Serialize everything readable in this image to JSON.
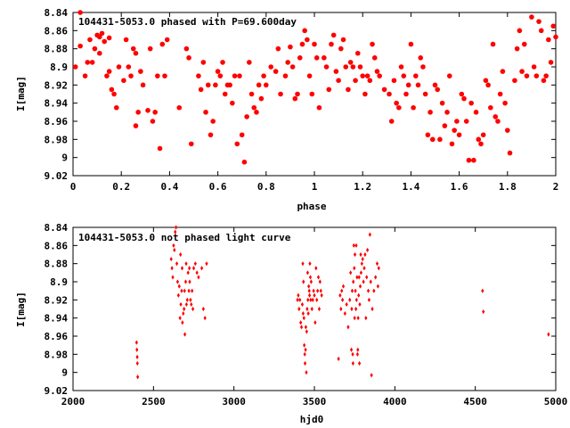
{
  "marker_color": "#ff0000",
  "chart_data": [
    {
      "type": "scatter",
      "title": "104431-5053.0 phased with P=69.600day",
      "xlabel": "phase",
      "ylabel": "I[mag]",
      "xlim": [
        0,
        2
      ],
      "ylim": [
        9.02,
        8.84
      ],
      "y_inverted": true,
      "marker": "filled-circle",
      "xticks": [
        "0",
        "0.2",
        "0.4",
        "0.6",
        "0.8",
        "1",
        "1.2",
        "1.4",
        "1.6",
        "1.8",
        "2"
      ],
      "yticks": [
        "8.84",
        "8.86",
        "8.88",
        "8.9",
        "8.92",
        "8.94",
        "8.96",
        "8.98",
        "9",
        "9.02"
      ],
      "points": [
        [
          0.01,
          8.9
        ],
        [
          0.03,
          8.84
        ],
        [
          0.03,
          8.877
        ],
        [
          0.05,
          8.91
        ],
        [
          0.06,
          8.895
        ],
        [
          0.07,
          8.87
        ],
        [
          0.08,
          8.895
        ],
        [
          0.09,
          8.88
        ],
        [
          0.1,
          8.865
        ],
        [
          0.11,
          8.867
        ],
        [
          0.11,
          8.885
        ],
        [
          0.12,
          8.863
        ],
        [
          0.13,
          8.872
        ],
        [
          0.14,
          8.91
        ],
        [
          0.15,
          8.905
        ],
        [
          0.15,
          8.868
        ],
        [
          0.16,
          8.925
        ],
        [
          0.17,
          8.93
        ],
        [
          0.18,
          8.945
        ],
        [
          0.19,
          8.9
        ],
        [
          0.21,
          8.915
        ],
        [
          0.22,
          8.87
        ],
        [
          0.23,
          8.9
        ],
        [
          0.24,
          8.91
        ],
        [
          0.25,
          8.88
        ],
        [
          0.26,
          8.885
        ],
        [
          0.26,
          8.965
        ],
        [
          0.27,
          8.95
        ],
        [
          0.28,
          8.905
        ],
        [
          0.29,
          8.92
        ],
        [
          0.31,
          8.948
        ],
        [
          0.32,
          8.88
        ],
        [
          0.33,
          8.96
        ],
        [
          0.34,
          8.95
        ],
        [
          0.35,
          8.91
        ],
        [
          0.36,
          8.99
        ],
        [
          0.37,
          8.875
        ],
        [
          0.38,
          8.91
        ],
        [
          0.39,
          8.87
        ],
        [
          0.44,
          8.945
        ],
        [
          0.47,
          8.88
        ],
        [
          0.48,
          8.89
        ],
        [
          0.49,
          8.985
        ],
        [
          0.52,
          8.91
        ],
        [
          0.53,
          8.925
        ],
        [
          0.54,
          8.895
        ],
        [
          0.55,
          8.95
        ],
        [
          0.56,
          8.92
        ],
        [
          0.57,
          8.975
        ],
        [
          0.58,
          8.96
        ],
        [
          0.59,
          8.92
        ],
        [
          0.6,
          8.905
        ],
        [
          0.61,
          8.91
        ],
        [
          0.62,
          8.895
        ],
        [
          0.63,
          8.93
        ],
        [
          0.64,
          8.92
        ],
        [
          0.65,
          8.92
        ],
        [
          0.66,
          8.94
        ],
        [
          0.67,
          8.91
        ],
        [
          0.68,
          8.985
        ],
        [
          0.69,
          8.91
        ],
        [
          0.7,
          8.975
        ],
        [
          0.71,
          9.005
        ],
        [
          0.72,
          8.955
        ],
        [
          0.73,
          8.895
        ],
        [
          0.74,
          8.93
        ],
        [
          0.75,
          8.945
        ],
        [
          0.76,
          8.95
        ],
        [
          0.77,
          8.92
        ],
        [
          0.78,
          8.935
        ],
        [
          0.79,
          8.91
        ],
        [
          0.8,
          8.92
        ],
        [
          0.82,
          8.9
        ],
        [
          0.84,
          8.905
        ],
        [
          0.85,
          8.88
        ],
        [
          0.86,
          8.93
        ],
        [
          0.88,
          8.91
        ],
        [
          0.89,
          8.895
        ],
        [
          0.9,
          8.878
        ],
        [
          0.91,
          8.9
        ],
        [
          0.92,
          8.935
        ],
        [
          0.93,
          8.93
        ],
        [
          0.94,
          8.89
        ],
        [
          0.95,
          8.875
        ],
        [
          0.96,
          8.86
        ],
        [
          0.97,
          8.87
        ],
        [
          0.98,
          8.91
        ],
        [
          0.99,
          8.93
        ],
        [
          1,
          8.875
        ],
        [
          1.01,
          8.89
        ],
        [
          1.02,
          8.945
        ],
        [
          1.04,
          8.89
        ],
        [
          1.05,
          8.9
        ],
        [
          1.06,
          8.925
        ],
        [
          1.07,
          8.875
        ],
        [
          1.08,
          8.865
        ],
        [
          1.09,
          8.905
        ],
        [
          1.1,
          8.915
        ],
        [
          1.11,
          8.88
        ],
        [
          1.12,
          8.87
        ],
        [
          1.13,
          8.9
        ],
        [
          1.14,
          8.925
        ],
        [
          1.15,
          8.895
        ],
        [
          1.16,
          8.9
        ],
        [
          1.17,
          8.915
        ],
        [
          1.18,
          8.885
        ],
        [
          1.19,
          8.9
        ],
        [
          1.2,
          8.91
        ],
        [
          1.21,
          8.93
        ],
        [
          1.22,
          8.91
        ],
        [
          1.23,
          8.915
        ],
        [
          1.24,
          8.875
        ],
        [
          1.25,
          8.89
        ],
        [
          1.26,
          8.905
        ],
        [
          1.27,
          8.91
        ],
        [
          1.29,
          8.925
        ],
        [
          1.31,
          8.93
        ],
        [
          1.32,
          8.96
        ],
        [
          1.33,
          8.915
        ],
        [
          1.34,
          8.94
        ],
        [
          1.35,
          8.945
        ],
        [
          1.36,
          8.9
        ],
        [
          1.37,
          8.91
        ],
        [
          1.38,
          8.93
        ],
        [
          1.39,
          8.92
        ],
        [
          1.4,
          8.875
        ],
        [
          1.41,
          8.945
        ],
        [
          1.42,
          8.91
        ],
        [
          1.43,
          8.92
        ],
        [
          1.44,
          8.89
        ],
        [
          1.45,
          8.9
        ],
        [
          1.46,
          8.93
        ],
        [
          1.47,
          8.975
        ],
        [
          1.48,
          8.95
        ],
        [
          1.49,
          8.98
        ],
        [
          1.5,
          8.92
        ],
        [
          1.51,
          8.925
        ],
        [
          1.52,
          8.98
        ],
        [
          1.53,
          8.94
        ],
        [
          1.54,
          8.965
        ],
        [
          1.55,
          8.95
        ],
        [
          1.56,
          8.91
        ],
        [
          1.57,
          8.985
        ],
        [
          1.58,
          8.97
        ],
        [
          1.59,
          8.96
        ],
        [
          1.6,
          8.975
        ],
        [
          1.61,
          8.93
        ],
        [
          1.62,
          8.935
        ],
        [
          1.63,
          8.96
        ],
        [
          1.64,
          9.003
        ],
        [
          1.65,
          8.94
        ],
        [
          1.66,
          9.003
        ],
        [
          1.67,
          8.95
        ],
        [
          1.68,
          8.98
        ],
        [
          1.69,
          8.985
        ],
        [
          1.7,
          8.975
        ],
        [
          1.71,
          8.915
        ],
        [
          1.72,
          8.92
        ],
        [
          1.73,
          8.945
        ],
        [
          1.74,
          8.875
        ],
        [
          1.75,
          8.955
        ],
        [
          1.76,
          8.96
        ],
        [
          1.77,
          8.93
        ],
        [
          1.78,
          8.905
        ],
        [
          1.79,
          8.94
        ],
        [
          1.8,
          8.97
        ],
        [
          1.81,
          8.995
        ],
        [
          1.83,
          8.915
        ],
        [
          1.84,
          8.88
        ],
        [
          1.85,
          8.86
        ],
        [
          1.86,
          8.905
        ],
        [
          1.87,
          8.875
        ],
        [
          1.88,
          8.91
        ],
        [
          1.9,
          8.845
        ],
        [
          1.91,
          8.9
        ],
        [
          1.92,
          8.91
        ],
        [
          1.93,
          8.85
        ],
        [
          1.94,
          8.86
        ],
        [
          1.95,
          8.915
        ],
        [
          1.96,
          8.91
        ],
        [
          1.97,
          8.87
        ],
        [
          1.98,
          8.895
        ],
        [
          1.99,
          8.855
        ],
        [
          2,
          8.867
        ]
      ]
    },
    {
      "type": "scatter",
      "title": "104431-5053.0 not phased light curve",
      "xlabel": "hjd0",
      "ylabel": "I[mag]",
      "xlim": [
        2000,
        5000
      ],
      "ylim": [
        9.02,
        8.84
      ],
      "y_inverted": true,
      "marker": "small-diamond",
      "xticks": [
        "2000",
        "2500",
        "3000",
        "3500",
        "4000",
        "4500",
        "5000"
      ],
      "yticks": [
        "8.84",
        "8.86",
        "8.88",
        "8.9",
        "8.92",
        "8.94",
        "8.96",
        "8.98",
        "9",
        "9.02"
      ],
      "points": [
        [
          2395,
          8.967
        ],
        [
          2397,
          8.975
        ],
        [
          2399,
          8.983
        ],
        [
          2400,
          8.99
        ],
        [
          2402,
          9.005
        ],
        [
          2610,
          8.875
        ],
        [
          2615,
          8.885
        ],
        [
          2620,
          8.895
        ],
        [
          2625,
          8.86
        ],
        [
          2630,
          8.865
        ],
        [
          2635,
          8.845
        ],
        [
          2640,
          8.84
        ],
        [
          2645,
          8.88
        ],
        [
          2650,
          8.9
        ],
        [
          2655,
          8.915
        ],
        [
          2660,
          8.905
        ],
        [
          2665,
          8.94
        ],
        [
          2668,
          8.87
        ],
        [
          2670,
          8.925
        ],
        [
          2675,
          8.91
        ],
        [
          2678,
          8.885
        ],
        [
          2680,
          8.945
        ],
        [
          2685,
          8.935
        ],
        [
          2690,
          8.93
        ],
        [
          2693,
          8.91
        ],
        [
          2695,
          8.958
        ],
        [
          2700,
          8.9
        ],
        [
          2703,
          8.88
        ],
        [
          2705,
          8.925
        ],
        [
          2710,
          8.92
        ],
        [
          2715,
          8.89
        ],
        [
          2720,
          8.91
        ],
        [
          2723,
          8.885
        ],
        [
          2725,
          8.9
        ],
        [
          2730,
          8.92
        ],
        [
          2735,
          8.925
        ],
        [
          2740,
          8.91
        ],
        [
          2745,
          8.93
        ],
        [
          2750,
          8.885
        ],
        [
          2760,
          8.88
        ],
        [
          2770,
          8.89
        ],
        [
          2780,
          8.895
        ],
        [
          2800,
          8.885
        ],
        [
          2810,
          8.93
        ],
        [
          2820,
          8.94
        ],
        [
          2830,
          8.88
        ],
        [
          3395,
          8.92
        ],
        [
          3400,
          8.915
        ],
        [
          3405,
          8.93
        ],
        [
          3410,
          8.92
        ],
        [
          3415,
          8.945
        ],
        [
          3420,
          8.95
        ],
        [
          3425,
          8.925
        ],
        [
          3428,
          8.88
        ],
        [
          3430,
          8.935
        ],
        [
          3432,
          8.9
        ],
        [
          3435,
          8.94
        ],
        [
          3437,
          8.97
        ],
        [
          3440,
          8.98
        ],
        [
          3442,
          8.99
        ],
        [
          3445,
          8.975
        ],
        [
          3447,
          8.95
        ],
        [
          3450,
          9.0
        ],
        [
          3452,
          8.955
        ],
        [
          3455,
          8.93
        ],
        [
          3458,
          8.89
        ],
        [
          3460,
          8.92
        ],
        [
          3462,
          8.935
        ],
        [
          3465,
          8.905
        ],
        [
          3468,
          8.91
        ],
        [
          3470,
          8.915
        ],
        [
          3472,
          8.88
        ],
        [
          3475,
          8.895
        ],
        [
          3477,
          8.92
        ],
        [
          3480,
          8.9
        ],
        [
          3485,
          8.93
        ],
        [
          3490,
          8.92
        ],
        [
          3495,
          8.91
        ],
        [
          3500,
          8.915
        ],
        [
          3505,
          8.945
        ],
        [
          3510,
          8.885
        ],
        [
          3515,
          8.92
        ],
        [
          3520,
          8.91
        ],
        [
          3525,
          8.895
        ],
        [
          3530,
          8.93
        ],
        [
          3535,
          8.9
        ],
        [
          3540,
          8.91
        ],
        [
          3545,
          8.915
        ],
        [
          3650,
          8.985
        ],
        [
          3660,
          8.915
        ],
        [
          3665,
          8.93
        ],
        [
          3670,
          8.91
        ],
        [
          3675,
          8.92
        ],
        [
          3680,
          8.905
        ],
        [
          3690,
          8.935
        ],
        [
          3700,
          8.925
        ],
        [
          3710,
          8.95
        ],
        [
          3720,
          8.92
        ],
        [
          3725,
          8.89
        ],
        [
          3730,
          8.975
        ],
        [
          3732,
          8.93
        ],
        [
          3735,
          8.91
        ],
        [
          3738,
          8.98
        ],
        [
          3740,
          8.99
        ],
        [
          3742,
          8.9
        ],
        [
          3745,
          8.86
        ],
        [
          3748,
          8.885
        ],
        [
          3750,
          8.94
        ],
        [
          3752,
          8.87
        ],
        [
          3755,
          8.91
        ],
        [
          3758,
          8.93
        ],
        [
          3760,
          8.86
        ],
        [
          3762,
          8.92
        ],
        [
          3765,
          8.895
        ],
        [
          3768,
          8.98
        ],
        [
          3770,
          8.975
        ],
        [
          3772,
          8.94
        ],
        [
          3775,
          8.915
        ],
        [
          3778,
          8.895
        ],
        [
          3780,
          8.99
        ],
        [
          3782,
          8.925
        ],
        [
          3785,
          8.905
        ],
        [
          3788,
          8.87
        ],
        [
          3790,
          8.89
        ],
        [
          3795,
          8.88
        ],
        [
          3800,
          8.875
        ],
        [
          3805,
          8.9
        ],
        [
          3810,
          8.885
        ],
        [
          3815,
          8.87
        ],
        [
          3820,
          8.94
        ],
        [
          3825,
          8.895
        ],
        [
          3830,
          8.865
        ],
        [
          3835,
          8.91
        ],
        [
          3840,
          8.92
        ],
        [
          3845,
          8.848
        ],
        [
          3850,
          8.9
        ],
        [
          3855,
          9.003
        ],
        [
          3860,
          8.93
        ],
        [
          3870,
          8.91
        ],
        [
          3880,
          8.895
        ],
        [
          3890,
          8.88
        ],
        [
          3895,
          8.905
        ],
        [
          3900,
          8.885
        ],
        [
          4545,
          8.91
        ],
        [
          4550,
          8.933
        ],
        [
          4955,
          8.958
        ]
      ]
    }
  ]
}
